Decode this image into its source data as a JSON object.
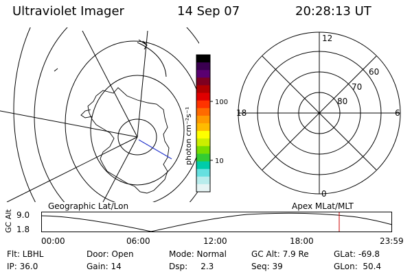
{
  "header": {
    "title": "Ultraviolet Imager",
    "date": "14 Sep 07",
    "time": "20:28:13 UT"
  },
  "colorbar": {
    "unit": "photon cm⁻²s⁻¹",
    "ticks": [
      "100",
      "10"
    ],
    "colors": [
      "#000000",
      "#3a0050",
      "#5a0070",
      "#7d0020",
      "#b00000",
      "#e00000",
      "#ff3300",
      "#ff6a00",
      "#ff9900",
      "#ffbb00",
      "#ffff00",
      "#ccee00",
      "#77dd00",
      "#33cc33",
      "#00ccaa",
      "#66e0e0",
      "#b8ecec",
      "#e6f4f4"
    ]
  },
  "geo_map": {
    "label": "Geographic Lat/Lon"
  },
  "polar_map": {
    "label": "Apex MLat/MLT",
    "lat_labels": [
      "60",
      "70",
      "80"
    ],
    "mlt_labels": {
      "top": "12",
      "left": "18",
      "right": "6",
      "bottom": "0"
    }
  },
  "altitude_plot": {
    "ylabel": "GC Alt",
    "yticks": [
      "9.0",
      "1.8"
    ],
    "xticks": [
      "00:00",
      "06:00",
      "12:00",
      "18:00",
      "23:59"
    ],
    "marker_time": "20:28",
    "marker_color": "#cc0000"
  },
  "footer": {
    "flt": "Flt: LBHL",
    "ip": "IP: 36.0",
    "door": "Door: Open",
    "gain": "Gain: 14",
    "mode": "Mode: Normal",
    "dsp": "Dsp:     2.3",
    "gc_alt": "GC Alt: 7.9 Re",
    "seq": "Seq: 39",
    "glat": "GLat: -69.8",
    "glon": "GLon:  50.4"
  }
}
